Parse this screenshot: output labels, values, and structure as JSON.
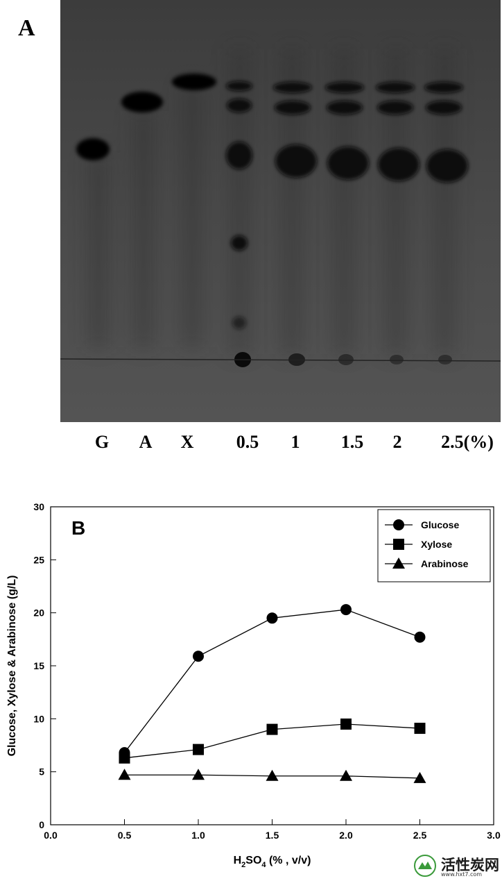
{
  "panel_a": {
    "label": "A",
    "lanes": [
      "G",
      "A",
      "X",
      "0.5",
      "1",
      "1.5",
      "2",
      "2.5(%)"
    ]
  },
  "chart_data": {
    "type": "line",
    "panel_label": "B",
    "title": "",
    "xlabel": "H2SO4 (%, v/v)",
    "xlabel_main": "H",
    "xlabel_sub1": "2",
    "xlabel_mid": "SO",
    "xlabel_sub2": "4",
    "xlabel_tail": " (% , v/v)",
    "ylabel": "Glucose, Xylose & Arabinose (g/L)",
    "xlim": [
      0.0,
      3.0
    ],
    "ylim": [
      0,
      30
    ],
    "xticks": [
      "0.0",
      "0.5",
      "1.0",
      "1.5",
      "2.0",
      "2.5",
      "3.0"
    ],
    "yticks": [
      "0",
      "5",
      "10",
      "15",
      "20",
      "25",
      "30"
    ],
    "grid": false,
    "legend_position": "top-right",
    "x": [
      0.5,
      1.0,
      1.5,
      2.0,
      2.5
    ],
    "series": [
      {
        "name": "Glucose",
        "marker": "circle",
        "values": [
          6.8,
          15.9,
          19.5,
          20.3,
          17.7
        ]
      },
      {
        "name": "Xylose",
        "marker": "square",
        "values": [
          6.3,
          7.1,
          9.0,
          9.5,
          9.1
        ]
      },
      {
        "name": "Arabinose",
        "marker": "triangle",
        "values": [
          4.7,
          4.7,
          4.6,
          4.6,
          4.4
        ]
      }
    ]
  },
  "watermark": {
    "text": "活性炭网",
    "url": "www.hxt7.com"
  },
  "colors": {
    "tlc_background": "#4a4a4a",
    "ink": "#000000"
  }
}
